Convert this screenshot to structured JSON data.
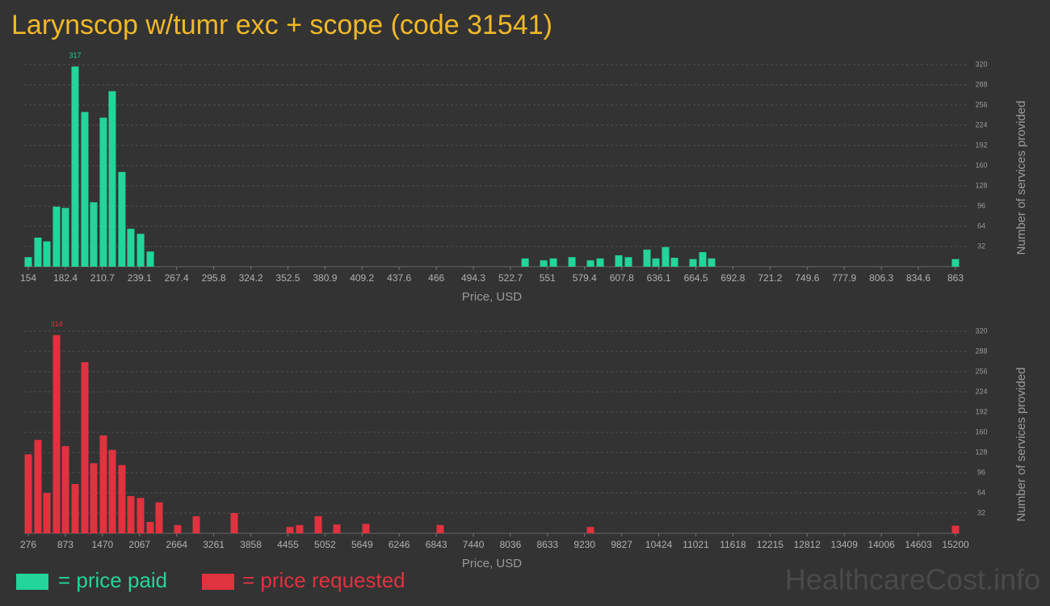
{
  "title": "Larynscop w/tumr exc + scope (code 31541)",
  "watermark": "HealthcareCost.info",
  "chart_data": [
    {
      "type": "bar",
      "xlabel": "Price, USD",
      "ylabel": "Number of services provided",
      "x": [
        154,
        161.4,
        168.2,
        175.6,
        182.4,
        189.8,
        197.2,
        204,
        211.4,
        218.2,
        225.6,
        232.4,
        239.9,
        247.3,
        533.9,
        548.1,
        555.5,
        569.7,
        583.9,
        591.3,
        605.5,
        612.9,
        627.1,
        633.9,
        641.3,
        648.1,
        662.3,
        669.7,
        676.5,
        863
      ],
      "series": [
        {
          "name": "= price paid",
          "color": "#23d49b",
          "values": [
            15,
            46,
            40,
            95,
            93,
            317,
            245,
            102,
            236,
            278,
            150,
            60,
            52,
            24,
            13,
            10,
            13,
            15,
            10,
            13,
            18,
            15,
            27,
            13,
            31,
            14,
            12,
            23,
            13,
            12
          ]
        }
      ],
      "xlim": [
        154,
        863
      ],
      "xticks": [
        154,
        182.4,
        210.7,
        239.1,
        267.4,
        295.8,
        324.2,
        352.5,
        380.9,
        409.2,
        437.6,
        466,
        494.3,
        522.7,
        551,
        579.4,
        607.8,
        636.1,
        664.5,
        692.8,
        721.2,
        749.6,
        777.9,
        806.3,
        834.6,
        863
      ],
      "ylim": [
        0,
        320
      ],
      "yticks": [
        32,
        64,
        96,
        128,
        160,
        192,
        224,
        256,
        288,
        320
      ],
      "grid": true
    },
    {
      "type": "bar",
      "xlabel": "Price, USD",
      "ylabel": "Number of services provided",
      "x": [
        276,
        432,
        575,
        731,
        874,
        1030,
        1186,
        1329,
        1485,
        1628,
        1784,
        1927,
        2083,
        2239,
        2382,
        2681,
        2980,
        3591,
        4488,
        4644,
        4943,
        5242,
        5710,
        6906,
        9324,
        15200
      ],
      "series": [
        {
          "name": "= price requested",
          "color": "#e0323f",
          "values": [
            125,
            148,
            64,
            314,
            138,
            78,
            271,
            111,
            155,
            132,
            108,
            59,
            56,
            18,
            49,
            13,
            27,
            32,
            10,
            13,
            27,
            14,
            15,
            13,
            10,
            12
          ]
        }
      ],
      "xlim": [
        276,
        15200
      ],
      "xticks": [
        276,
        873,
        1470,
        2067,
        2664,
        3261,
        3858,
        4455,
        5052,
        5649,
        6246,
        6843,
        7440,
        8036,
        8633,
        9230,
        9827,
        10424,
        11021,
        11618,
        12215,
        12812,
        13409,
        14006,
        14603,
        15200
      ],
      "ylim": [
        0,
        320
      ],
      "yticks": [
        32,
        64,
        96,
        128,
        160,
        192,
        224,
        256,
        288,
        320
      ],
      "grid": true
    }
  ]
}
